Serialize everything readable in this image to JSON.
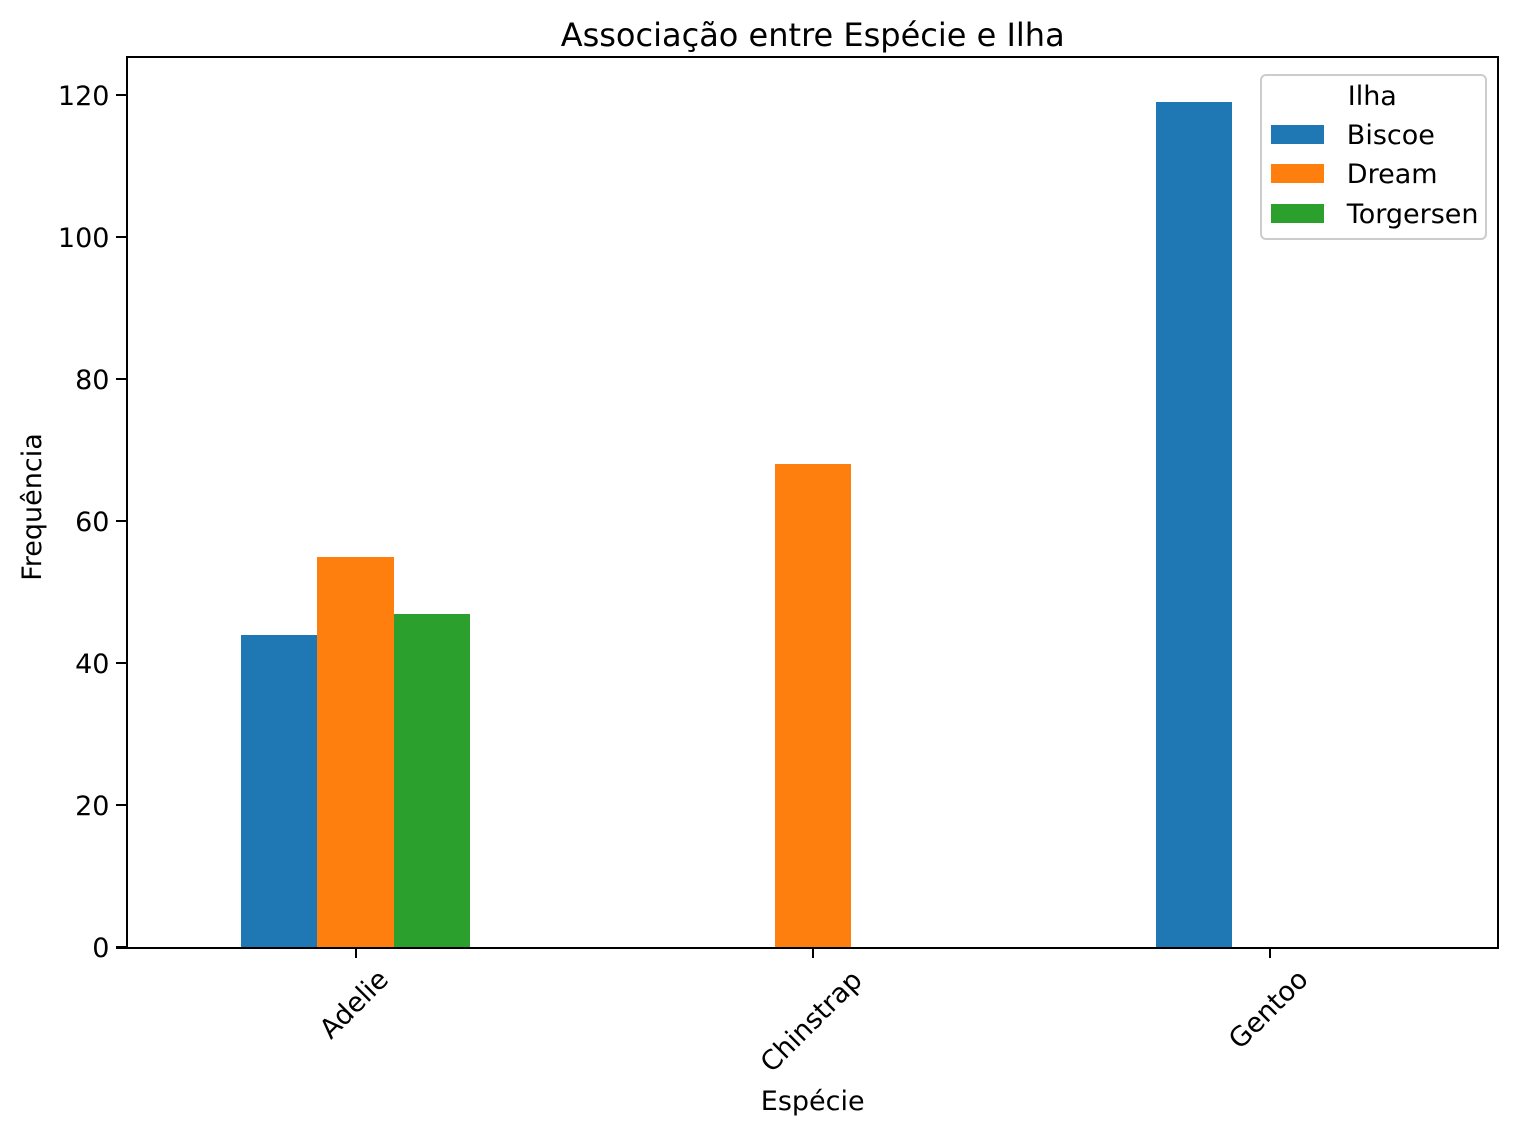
{
  "chart_data": {
    "type": "bar",
    "title": "Associação entre Espécie e Ilha",
    "xlabel": "Espécie",
    "ylabel": "Frequência",
    "categories": [
      "Adelie",
      "Chinstrap",
      "Gentoo"
    ],
    "series": [
      {
        "name": "Biscoe",
        "color": "#1f77b4",
        "values": [
          44,
          0,
          119
        ]
      },
      {
        "name": "Dream",
        "color": "#ff7f0e",
        "values": [
          55,
          68,
          0
        ]
      },
      {
        "name": "Torgersen",
        "color": "#2ca02c",
        "values": [
          47,
          0,
          0
        ]
      }
    ],
    "yticks": [
      0,
      20,
      40,
      60,
      80,
      100,
      120
    ],
    "ylim": [
      0,
      125.3
    ],
    "bar_group_fraction": 0.5,
    "grid": false,
    "legend": {
      "title": "Ilha",
      "position": "upper right",
      "entries": [
        "Biscoe",
        "Dream",
        "Torgersen"
      ]
    },
    "colors": {
      "background": "#ffffff",
      "text": "#000000",
      "spine": "#000000",
      "legend_border": "#cccccc"
    }
  }
}
